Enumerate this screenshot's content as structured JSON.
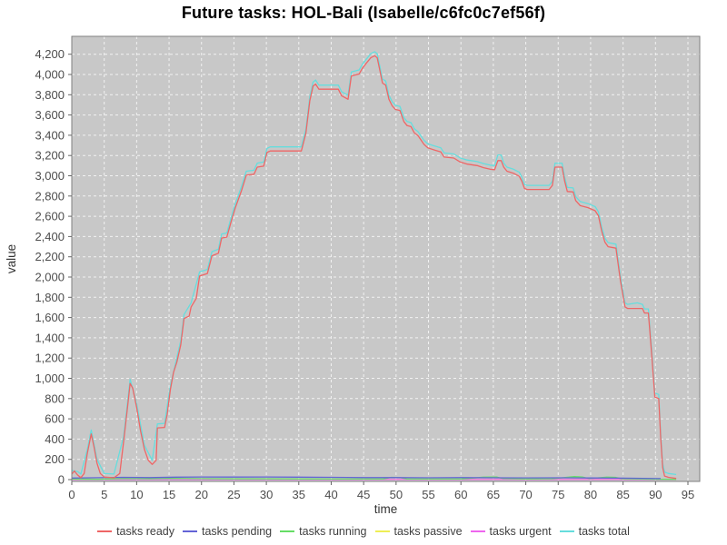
{
  "title": "Future tasks: HOL-Bali (Isabelle/c6fc0c7ef56f)",
  "axes": {
    "x_label": "time",
    "y_label": "value",
    "x_ticks": [
      "0",
      "5",
      "10",
      "15",
      "20",
      "25",
      "30",
      "35",
      "40",
      "45",
      "50",
      "55",
      "60",
      "65",
      "70",
      "75",
      "80",
      "85",
      "90",
      "95"
    ],
    "y_ticks": [
      "0",
      "200",
      "400",
      "600",
      "800",
      "1,000",
      "1,200",
      "1,400",
      "1,600",
      "1,800",
      "2,000",
      "2,200",
      "2,400",
      "2,600",
      "2,800",
      "3,000",
      "3,200",
      "3,400",
      "3,600",
      "3,800",
      "4,000",
      "4,200"
    ]
  },
  "style_colors": {
    "plot_background": "#c8c8c8",
    "grid": "#f2f2f2",
    "plot_border": "#7f7f7f",
    "tick_text": "#4d4d4d",
    "axis_label_text": "#333333",
    "legend_text": "#404040"
  },
  "chart_data": {
    "type": "line",
    "title": "Future tasks: HOL-Bali (Isabelle/c6fc0c7ef56f)",
    "xlabel": "time",
    "ylabel": "value",
    "xlim": [
      0,
      96.8
    ],
    "ylim": [
      0,
      4380
    ],
    "x_tick_step": 5,
    "y_tick_step": 200,
    "grid": true,
    "legend_position": "bottom",
    "series": [
      {
        "name": "tasks ready",
        "color": "#ee6666",
        "points": [
          [
            0,
            55
          ],
          [
            0.4,
            85
          ],
          [
            0.9,
            45
          ],
          [
            1.4,
            20
          ],
          [
            1.9,
            60
          ],
          [
            2.4,
            260
          ],
          [
            3,
            450
          ],
          [
            3.4,
            330
          ],
          [
            3.9,
            160
          ],
          [
            4.4,
            60
          ],
          [
            5,
            25
          ],
          [
            6.5,
            18
          ],
          [
            7.4,
            60
          ],
          [
            8,
            380
          ],
          [
            8.6,
            720
          ],
          [
            9,
            950
          ],
          [
            9.4,
            900
          ],
          [
            10,
            710
          ],
          [
            10.6,
            480
          ],
          [
            11.2,
            300
          ],
          [
            11.8,
            190
          ],
          [
            12.4,
            150
          ],
          [
            13,
            190
          ],
          [
            13.2,
            510
          ],
          [
            14.3,
            515
          ],
          [
            14.7,
            640
          ],
          [
            15.2,
            890
          ],
          [
            15.7,
            1060
          ],
          [
            16.2,
            1160
          ],
          [
            16.8,
            1330
          ],
          [
            17.3,
            1590
          ],
          [
            18.1,
            1615
          ],
          [
            18.4,
            1705
          ],
          [
            19.2,
            1790
          ],
          [
            19.7,
            2010
          ],
          [
            20.9,
            2035
          ],
          [
            21.6,
            2210
          ],
          [
            22.6,
            2235
          ],
          [
            23.1,
            2385
          ],
          [
            23.9,
            2395
          ],
          [
            24.6,
            2555
          ],
          [
            25.2,
            2680
          ],
          [
            26.2,
            2860
          ],
          [
            26.9,
            3005
          ],
          [
            28.1,
            3015
          ],
          [
            28.6,
            3085
          ],
          [
            29.6,
            3095
          ],
          [
            30.1,
            3230
          ],
          [
            30.6,
            3245
          ],
          [
            35.4,
            3245
          ],
          [
            36.1,
            3420
          ],
          [
            36.7,
            3740
          ],
          [
            37.2,
            3885
          ],
          [
            37.6,
            3905
          ],
          [
            38.1,
            3855
          ],
          [
            41.1,
            3855
          ],
          [
            41.6,
            3790
          ],
          [
            42.6,
            3755
          ],
          [
            43.1,
            3985
          ],
          [
            44.3,
            4005
          ],
          [
            44.8,
            4060
          ],
          [
            45.4,
            4110
          ],
          [
            46.1,
            4165
          ],
          [
            46.7,
            4185
          ],
          [
            47.1,
            4165
          ],
          [
            47.5,
            4040
          ],
          [
            47.9,
            3915
          ],
          [
            48.4,
            3895
          ],
          [
            48.9,
            3755
          ],
          [
            49.4,
            3690
          ],
          [
            49.9,
            3655
          ],
          [
            50.6,
            3645
          ],
          [
            51.2,
            3535
          ],
          [
            51.7,
            3495
          ],
          [
            52.3,
            3485
          ],
          [
            52.8,
            3425
          ],
          [
            53.4,
            3395
          ],
          [
            54.3,
            3310
          ],
          [
            54.9,
            3275
          ],
          [
            55.9,
            3255
          ],
          [
            56.9,
            3235
          ],
          [
            57.4,
            3185
          ],
          [
            58.9,
            3175
          ],
          [
            59.9,
            3135
          ],
          [
            61,
            3115
          ],
          [
            62.5,
            3100
          ],
          [
            63.5,
            3080
          ],
          [
            64.5,
            3065
          ],
          [
            65.2,
            3060
          ],
          [
            65.7,
            3150
          ],
          [
            66.2,
            3150
          ],
          [
            66.6,
            3085
          ],
          [
            67.1,
            3045
          ],
          [
            68.1,
            3025
          ],
          [
            69,
            2995
          ],
          [
            69.4,
            2945
          ],
          [
            69.8,
            2875
          ],
          [
            70.2,
            2865
          ],
          [
            73.6,
            2865
          ],
          [
            74.1,
            2905
          ],
          [
            74.5,
            3085
          ],
          [
            75.6,
            3085
          ],
          [
            76,
            2945
          ],
          [
            76.4,
            2845
          ],
          [
            77.3,
            2840
          ],
          [
            77.7,
            2755
          ],
          [
            78.4,
            2705
          ],
          [
            79.6,
            2685
          ],
          [
            80.7,
            2655
          ],
          [
            81.2,
            2605
          ],
          [
            81.7,
            2455
          ],
          [
            82.2,
            2345
          ],
          [
            82.7,
            2300
          ],
          [
            83.9,
            2285
          ],
          [
            84.6,
            1960
          ],
          [
            85.3,
            1705
          ],
          [
            85.7,
            1690
          ],
          [
            88,
            1690
          ],
          [
            88.3,
            1645
          ],
          [
            88.9,
            1645
          ],
          [
            89.4,
            1250
          ],
          [
            89.9,
            815
          ],
          [
            90.5,
            800
          ],
          [
            90.8,
            420
          ],
          [
            91.1,
            120
          ],
          [
            91.4,
            35
          ],
          [
            92,
            22
          ],
          [
            93.2,
            12
          ]
        ]
      },
      {
        "name": "tasks pending",
        "color": "#6363d6",
        "points": [
          [
            0,
            15
          ],
          [
            3,
            18
          ],
          [
            8,
            22
          ],
          [
            12,
            20
          ],
          [
            16,
            24
          ],
          [
            20,
            26
          ],
          [
            25,
            25
          ],
          [
            30,
            26
          ],
          [
            35,
            24
          ],
          [
            40,
            22
          ],
          [
            45,
            20
          ],
          [
            50,
            20
          ],
          [
            55,
            18
          ],
          [
            60,
            20
          ],
          [
            65,
            18
          ],
          [
            70,
            17
          ],
          [
            75,
            18
          ],
          [
            80,
            16
          ],
          [
            85,
            14
          ],
          [
            88,
            13
          ],
          [
            90.8,
            10
          ]
        ]
      },
      {
        "name": "tasks running",
        "color": "#66dd66",
        "points": [
          [
            0,
            6
          ],
          [
            4,
            4
          ],
          [
            8,
            10
          ],
          [
            12,
            8
          ],
          [
            15,
            12
          ],
          [
            20,
            9
          ],
          [
            25,
            7
          ],
          [
            30,
            7
          ],
          [
            35,
            6
          ],
          [
            40,
            5
          ],
          [
            48,
            5
          ],
          [
            49.3,
            22
          ],
          [
            50.6,
            20
          ],
          [
            51.6,
            6
          ],
          [
            55,
            5
          ],
          [
            60,
            5
          ],
          [
            63.5,
            24
          ],
          [
            65.5,
            26
          ],
          [
            66.5,
            10
          ],
          [
            70,
            5
          ],
          [
            74,
            8
          ],
          [
            77.5,
            30
          ],
          [
            78.7,
            26
          ],
          [
            79.8,
            10
          ],
          [
            82.5,
            24
          ],
          [
            83.8,
            22
          ],
          [
            84.8,
            8
          ],
          [
            88,
            5
          ],
          [
            90,
            4
          ],
          [
            93.2,
            3
          ]
        ]
      },
      {
        "name": "tasks passive",
        "color": "#eeee55",
        "points": [
          [
            0,
            2
          ],
          [
            93.2,
            2
          ]
        ]
      },
      {
        "name": "tasks urgent",
        "color": "#ee66ee",
        "points": [
          [
            0,
            1
          ],
          [
            93.2,
            1
          ]
        ]
      },
      {
        "name": "tasks total",
        "color": "#66dddd",
        "points": [
          [
            0,
            90
          ],
          [
            0.9,
            80
          ],
          [
            1.4,
            55
          ],
          [
            2.4,
            300
          ],
          [
            3,
            490
          ],
          [
            3.9,
            200
          ],
          [
            5,
            60
          ],
          [
            6.5,
            55
          ],
          [
            8,
            430
          ],
          [
            9,
            990
          ],
          [
            10,
            750
          ],
          [
            11.2,
            340
          ],
          [
            12.4,
            190
          ],
          [
            13.2,
            550
          ],
          [
            14.3,
            555
          ],
          [
            15.2,
            930
          ],
          [
            16.8,
            1370
          ],
          [
            17.3,
            1630
          ],
          [
            18.4,
            1745
          ],
          [
            19.7,
            2050
          ],
          [
            20.9,
            2075
          ],
          [
            21.6,
            2250
          ],
          [
            22.6,
            2275
          ],
          [
            23.1,
            2425
          ],
          [
            23.9,
            2435
          ],
          [
            24.6,
            2595
          ],
          [
            25.2,
            2720
          ],
          [
            26.2,
            2900
          ],
          [
            26.9,
            3045
          ],
          [
            28.1,
            3055
          ],
          [
            28.6,
            3125
          ],
          [
            29.6,
            3135
          ],
          [
            30.1,
            3270
          ],
          [
            30.6,
            3285
          ],
          [
            35.4,
            3285
          ],
          [
            36.1,
            3460
          ],
          [
            36.7,
            3780
          ],
          [
            37.2,
            3925
          ],
          [
            37.6,
            3945
          ],
          [
            38.1,
            3895
          ],
          [
            41.1,
            3895
          ],
          [
            41.6,
            3830
          ],
          [
            42.6,
            3795
          ],
          [
            43.1,
            4025
          ],
          [
            44.3,
            4045
          ],
          [
            44.8,
            4100
          ],
          [
            45.4,
            4150
          ],
          [
            46.1,
            4205
          ],
          [
            46.7,
            4225
          ],
          [
            47.1,
            4205
          ],
          [
            47.5,
            4080
          ],
          [
            47.9,
            3955
          ],
          [
            48.4,
            3935
          ],
          [
            48.9,
            3795
          ],
          [
            49.4,
            3730
          ],
          [
            49.9,
            3695
          ],
          [
            50.6,
            3685
          ],
          [
            51.2,
            3575
          ],
          [
            51.7,
            3535
          ],
          [
            52.3,
            3525
          ],
          [
            52.8,
            3465
          ],
          [
            53.4,
            3435
          ],
          [
            54.3,
            3350
          ],
          [
            54.9,
            3315
          ],
          [
            55.9,
            3295
          ],
          [
            56.9,
            3275
          ],
          [
            57.4,
            3225
          ],
          [
            58.9,
            3215
          ],
          [
            59.9,
            3175
          ],
          [
            61,
            3155
          ],
          [
            62.5,
            3140
          ],
          [
            63.5,
            3120
          ],
          [
            64.5,
            3105
          ],
          [
            65.2,
            3100
          ],
          [
            65.7,
            3205
          ],
          [
            66.2,
            3205
          ],
          [
            66.6,
            3125
          ],
          [
            67.1,
            3085
          ],
          [
            68.1,
            3065
          ],
          [
            69,
            3035
          ],
          [
            69.4,
            2985
          ],
          [
            69.8,
            2915
          ],
          [
            70.2,
            2905
          ],
          [
            73.6,
            2905
          ],
          [
            74.1,
            2945
          ],
          [
            74.5,
            3125
          ],
          [
            75.6,
            3125
          ],
          [
            76,
            2985
          ],
          [
            76.4,
            2885
          ],
          [
            77.3,
            2880
          ],
          [
            77.7,
            2795
          ],
          [
            78.4,
            2745
          ],
          [
            79.6,
            2725
          ],
          [
            80.7,
            2695
          ],
          [
            81.2,
            2645
          ],
          [
            81.7,
            2495
          ],
          [
            82.2,
            2385
          ],
          [
            82.7,
            2340
          ],
          [
            83.9,
            2325
          ],
          [
            84.6,
            2000
          ],
          [
            85.3,
            1745
          ],
          [
            85.7,
            1730
          ],
          [
            87.2,
            1745
          ],
          [
            88,
            1730
          ],
          [
            88.3,
            1685
          ],
          [
            88.9,
            1685
          ],
          [
            89.4,
            1290
          ],
          [
            89.9,
            855
          ],
          [
            90.5,
            840
          ],
          [
            90.8,
            460
          ],
          [
            91.1,
            160
          ],
          [
            91.4,
            75
          ],
          [
            92,
            60
          ],
          [
            93.2,
            50
          ]
        ]
      }
    ]
  }
}
